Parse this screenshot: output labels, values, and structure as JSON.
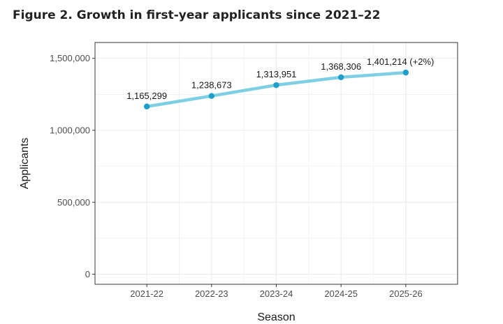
{
  "figure": {
    "title": "Figure 2. Growth in first-year applicants since 2021–22"
  },
  "chart_data": {
    "type": "line",
    "title": "Figure 2. Growth in first-year applicants since 2021–22",
    "xlabel": "Season",
    "ylabel": "Applicants",
    "categories": [
      "2021-22",
      "2022-23",
      "2023-24",
      "2024-25",
      "2025-26"
    ],
    "series": [
      {
        "name": "Applicants",
        "values": [
          1165299,
          1238673,
          1313951,
          1368306,
          1401214
        ]
      }
    ],
    "data_labels": [
      "1,165,299",
      "1,238,673",
      "1,313,951",
      "1,368,306",
      "1,401,214 (+2%)"
    ],
    "y_ticks": [
      0,
      500000,
      1000000,
      1500000
    ],
    "y_tick_labels": [
      "0",
      "500,000",
      "1,000,000",
      "1,500,000"
    ],
    "ylim": [
      -70000,
      1610000
    ],
    "grid": true,
    "line_color": "#7ecfe3",
    "point_color": "#1e9fc9",
    "grid_color": "#ebebeb",
    "panel_border_color": "#333333"
  }
}
